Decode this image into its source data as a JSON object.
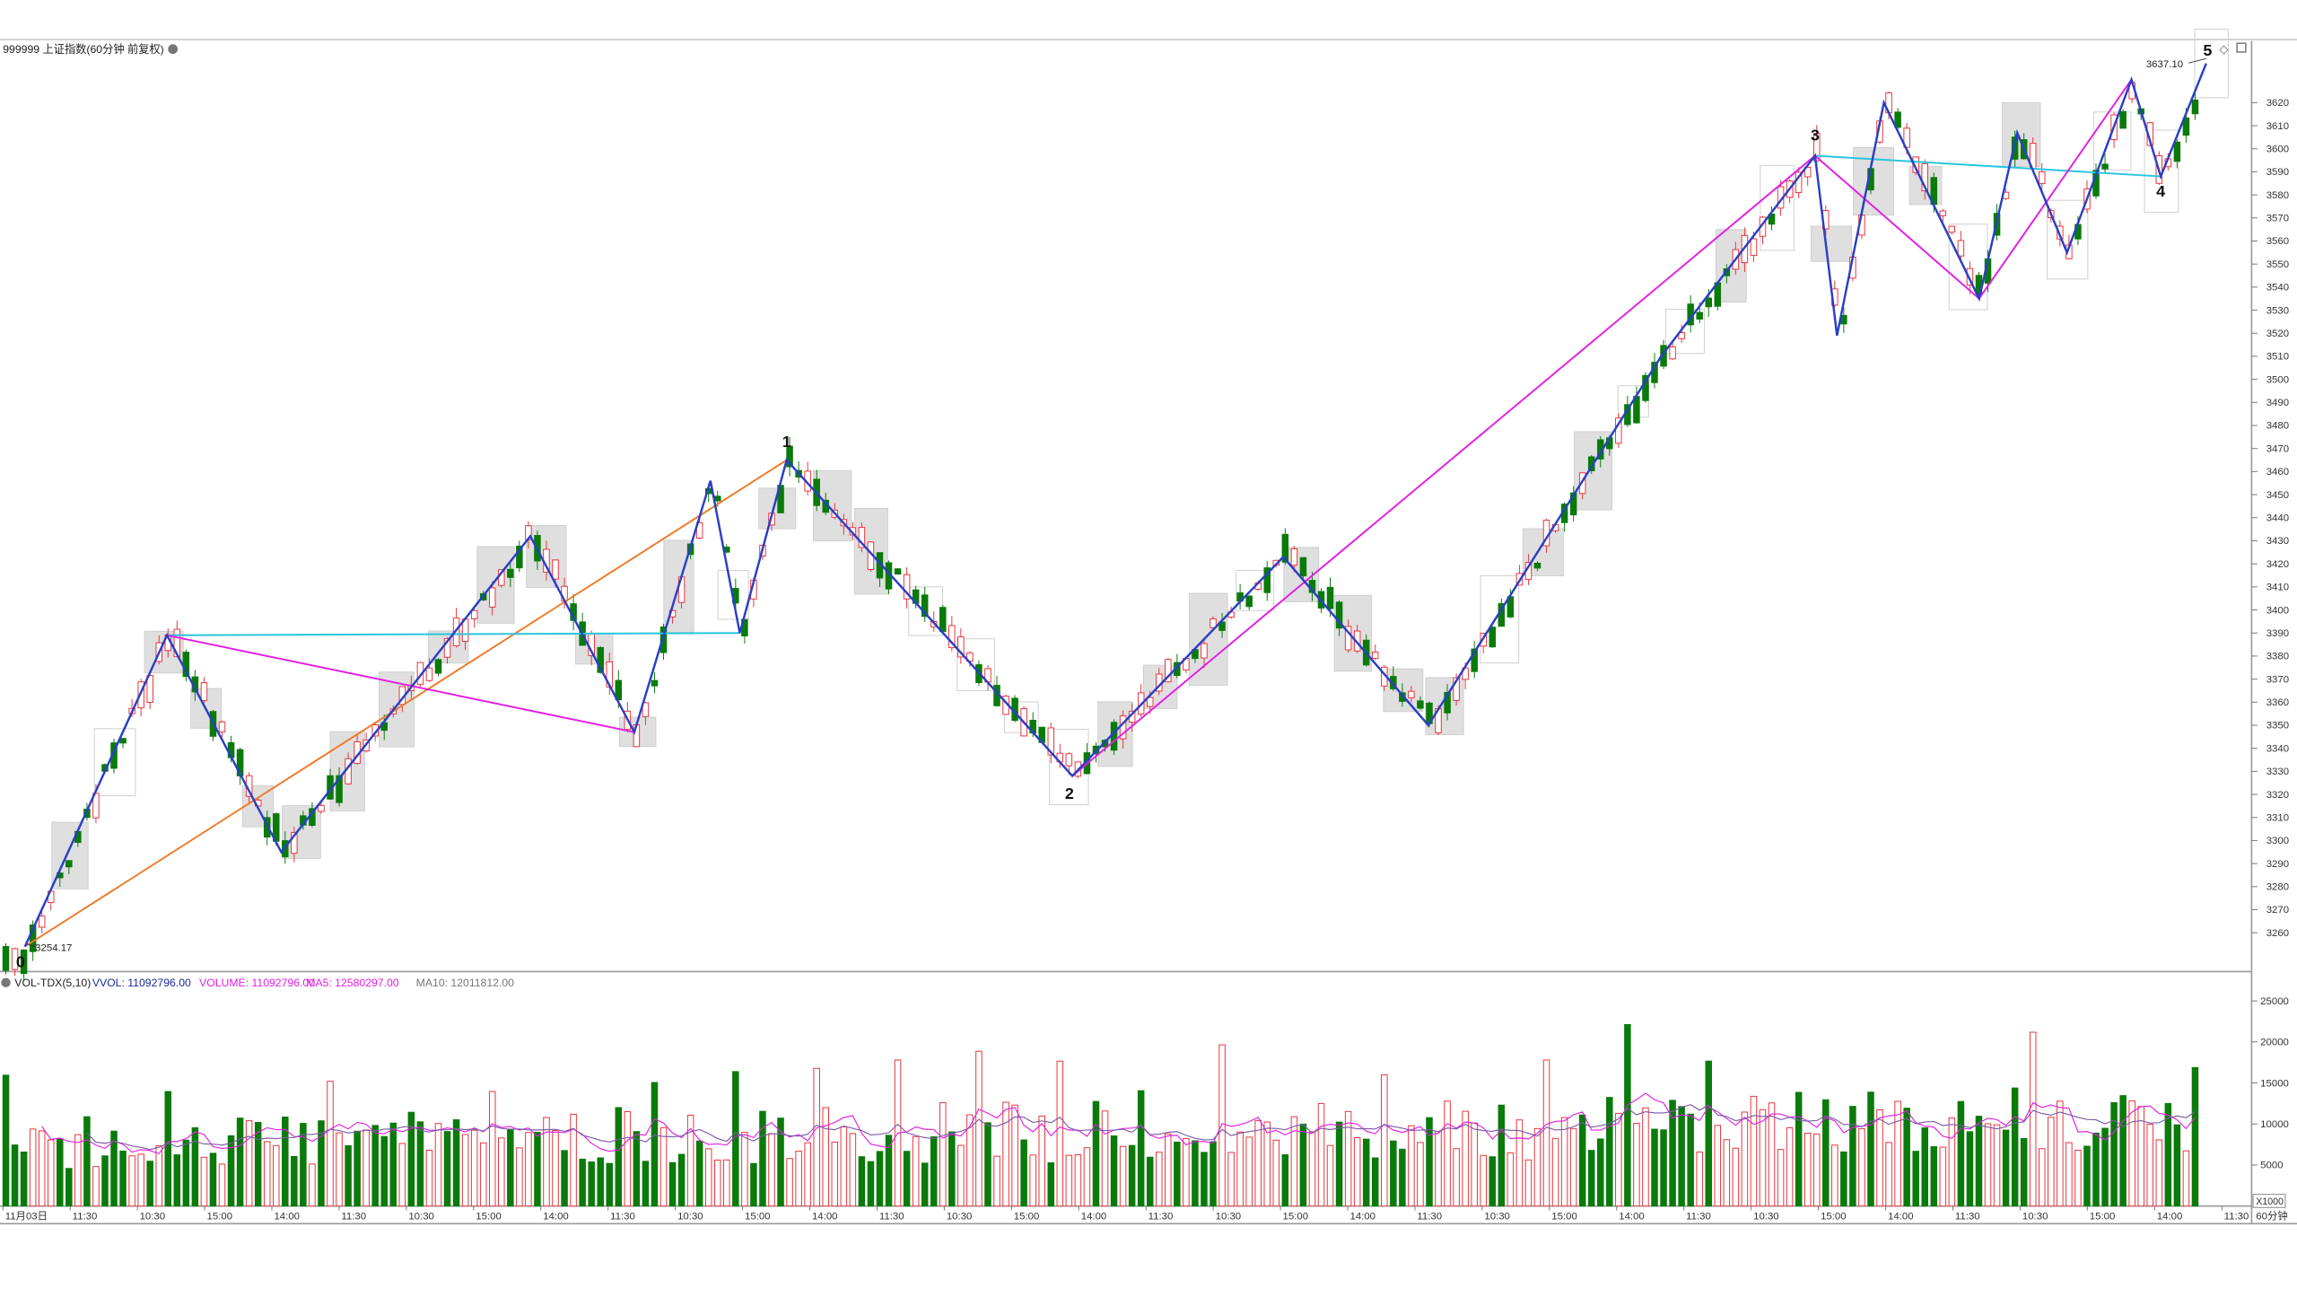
{
  "price_panel": {
    "title": "999999 上证指数(60分钟 前复权)",
    "high_label": "3637.10",
    "low_label": "3254.17"
  },
  "volume_panel": {
    "title_prefix": "VOL-TDX(5,10)",
    "vvol": "VVOL: 11092796.00",
    "volume": "VOLUME: 11092796.00",
    "ma5": "MA5: 12580297.00",
    "ma10": "MA10: 12011812.00",
    "unit_label": "X1000"
  },
  "period_label": "60分钟",
  "colors": {
    "up": "#e8333b",
    "down": "#0a7a0a",
    "zigzag": "#2a3fc7",
    "trend_magenta": "#e21fe2",
    "trend_orange": "#f07a2a",
    "trend_cyan": "#27c6dc",
    "box": "#cfcfcf"
  },
  "wave_labels": [
    "0",
    "1",
    "2",
    "3",
    "4",
    "5"
  ],
  "chart_data": [
    {
      "type": "candlestick",
      "title": "999999 上证指数(60分钟 前复权)",
      "y_ticks": [
        3260,
        3270,
        3280,
        3290,
        3300,
        3310,
        3320,
        3330,
        3340,
        3350,
        3360,
        3370,
        3380,
        3390,
        3400,
        3410,
        3420,
        3430,
        3440,
        3450,
        3460,
        3470,
        3480,
        3490,
        3500,
        3510,
        3520,
        3530,
        3540,
        3550,
        3560,
        3570,
        3580,
        3590,
        3600,
        3610,
        3620
      ],
      "ylim": [
        3240,
        3640
      ],
      "x_tick_labels": [
        "11月03日",
        "11:30",
        "10:30",
        "15:00",
        "14:00",
        "11:30",
        "10:30",
        "15:00",
        "14:00",
        "11:30",
        "10:30",
        "15:00",
        "14:00",
        "11:30",
        "10:30",
        "15:00",
        "14:00",
        "11:30",
        "10:30",
        "15:00",
        "14:00",
        "11:30",
        "10:30",
        "15:00",
        "14:00",
        "11:30",
        "10:30",
        "15:00",
        "14:00",
        "11:30",
        "10:30",
        "15:00",
        "14:00",
        "11:30"
      ],
      "wave_points": [
        {
          "label": "0",
          "value": 3254.17
        },
        {
          "label": "1",
          "value": 3465
        },
        {
          "label": "2",
          "value": 3328
        },
        {
          "label": "3",
          "value": 3597
        },
        {
          "label": "4",
          "value": 3588
        },
        {
          "label": "5",
          "value": 3637.1
        }
      ],
      "zigzag": [
        3254,
        3389,
        3295,
        3432,
        3347,
        3456,
        3390,
        3465,
        3328,
        3423,
        3350,
        3510,
        3597,
        3519,
        3620,
        3535,
        3607,
        3555,
        3630,
        3588,
        3637
      ],
      "trend_lines": [
        {
          "name": "magenta",
          "values": [
            3389,
            3347
          ]
        },
        {
          "name": "magenta",
          "values": [
            3328,
            3597,
            3535,
            3630
          ]
        },
        {
          "name": "orange",
          "values": [
            3254,
            3465
          ]
        },
        {
          "name": "cyan",
          "values": [
            3389,
            3390
          ]
        },
        {
          "name": "cyan",
          "values": [
            3597,
            3588
          ]
        }
      ]
    },
    {
      "type": "bar",
      "title": "VOL-TDX(5,10)",
      "y_ticks": [
        5000,
        10000,
        15000,
        20000,
        25000
      ],
      "unit": "X1000",
      "last_volume": 11092796.0,
      "ma5_last": 12580297.0,
      "ma10_last": 12011812.0
    }
  ]
}
